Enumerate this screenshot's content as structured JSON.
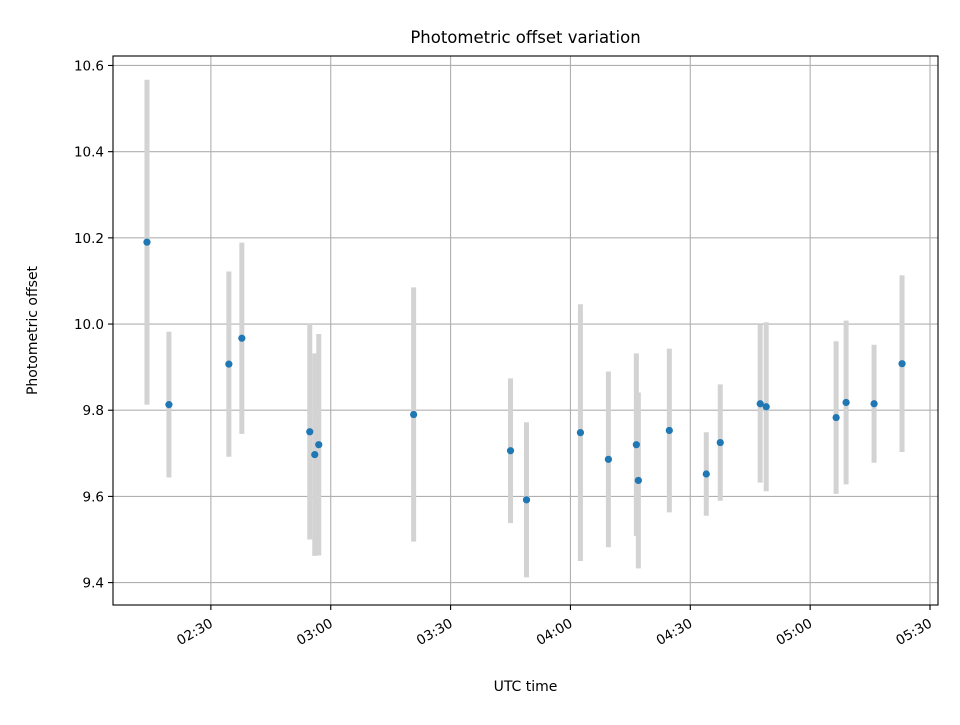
{
  "chart_data": {
    "type": "scatter",
    "title": "Photometric offset variation",
    "xlabel": "UTC time",
    "ylabel": "Photometric offset",
    "x_ticks": [
      "02:30",
      "03:00",
      "03:30",
      "04:00",
      "04:30",
      "05:00",
      "05:30"
    ],
    "y_ticks": [
      "9.4",
      "9.6",
      "9.8",
      "10.0",
      "10.2",
      "10.4",
      "10.6"
    ],
    "xlim": [
      "02:05:30",
      "05:32:00"
    ],
    "ylim": [
      9.348,
      10.622
    ],
    "grid": true,
    "colors": {
      "marker": "#1f77b4",
      "errorbar": "#d3d3d3",
      "grid": "#b0b0b0"
    },
    "series": [
      {
        "x": [
          "02:14:00",
          "02:19:30",
          "02:34:30",
          "02:37:45",
          "02:54:45",
          "02:56:00",
          "02:57:00",
          "03:20:45",
          "03:45:00",
          "03:49:00",
          "04:02:30",
          "04:09:30",
          "04:16:30",
          "04:17:00",
          "04:24:45",
          "04:34:00",
          "04:37:30",
          "04:47:30",
          "04:49:00",
          "05:06:30",
          "05:09:00",
          "05:16:00",
          "05:23:00"
        ],
        "y": [
          10.19,
          9.813,
          9.907,
          9.967,
          9.75,
          9.697,
          9.72,
          9.79,
          9.706,
          9.592,
          9.748,
          9.686,
          9.72,
          9.637,
          9.753,
          9.652,
          9.725,
          9.815,
          9.808,
          9.783,
          9.818,
          9.815,
          9.908
        ],
        "err": [
          0.377,
          0.169,
          0.215,
          0.222,
          0.25,
          0.235,
          0.257,
          0.295,
          0.168,
          0.18,
          0.298,
          0.204,
          0.212,
          0.204,
          0.19,
          0.097,
          0.135,
          0.183,
          0.196,
          0.177,
          0.19,
          0.137,
          0.205
        ]
      }
    ]
  }
}
